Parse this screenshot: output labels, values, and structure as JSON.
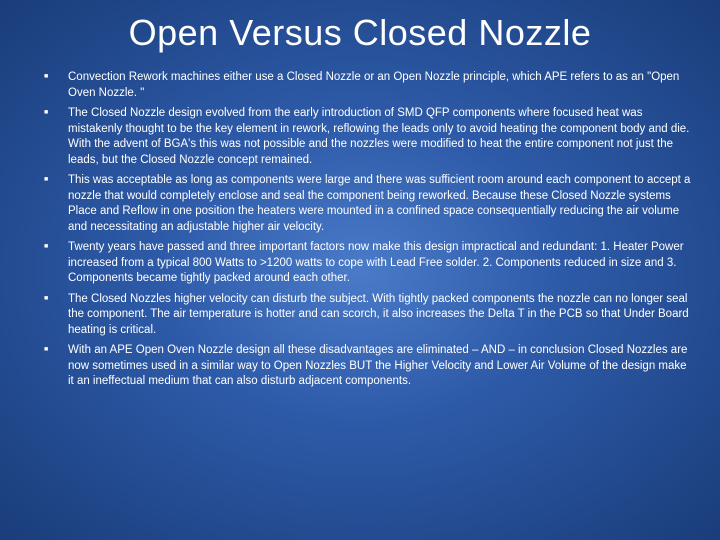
{
  "slide": {
    "title": "Open Versus Closed Nozzle",
    "bullets": [
      "Convection Rework machines either use a Closed Nozzle or an Open Nozzle principle, which APE refers to as an \"Open Oven Nozzle. \"",
      "The Closed Nozzle design evolved from the early introduction of SMD QFP components where focused heat was mistakenly thought to be the key element in rework, reflowing the leads only to avoid heating the component body and die. With the advent of BGA's this was not possible and the nozzles were modified to heat the entire component not just the leads, but the Closed Nozzle concept remained.",
      "This was acceptable as long as components were large and there was sufficient room around each component to accept a nozzle that would completely enclose and seal the component being reworked. Because these Closed Nozzle systems Place and Reflow in one position the heaters were mounted in a confined space consequentially reducing the air volume and necessitating an adjustable higher air velocity.",
      "Twenty years have passed and three important factors now make this design impractical and redundant: 1. Heater Power increased from a typical 800 Watts to >1200 watts to cope with Lead Free solder. 2. Components reduced in size and 3. Components became tightly packed around each other.",
      "The Closed Nozzles higher velocity can disturb the subject. With tightly packed components the nozzle can no longer seal the component. The air temperature is hotter and can scorch, it also increases the Delta T in the PCB so that Under Board heating is critical.",
      "With an APE Open Oven Nozzle design all these disadvantages are eliminated – AND – in conclusion Closed Nozzles are now sometimes used in a similar way to  Open Nozzles BUT the Higher Velocity and Lower Air Volume of the design make it an ineffectual medium that can also disturb adjacent components."
    ]
  },
  "style": {
    "background_center": "#4a7bc8",
    "background_mid": "#2d5aa8",
    "background_edge": "#1a3d7a",
    "text_color": "#ffffff",
    "title_font": "Arial",
    "title_fontsize": 36,
    "body_font": "Verdana",
    "body_fontsize": 11.5,
    "bullet_marker": "■",
    "bullet_marker_size": 7,
    "line_height": 1.35
  }
}
